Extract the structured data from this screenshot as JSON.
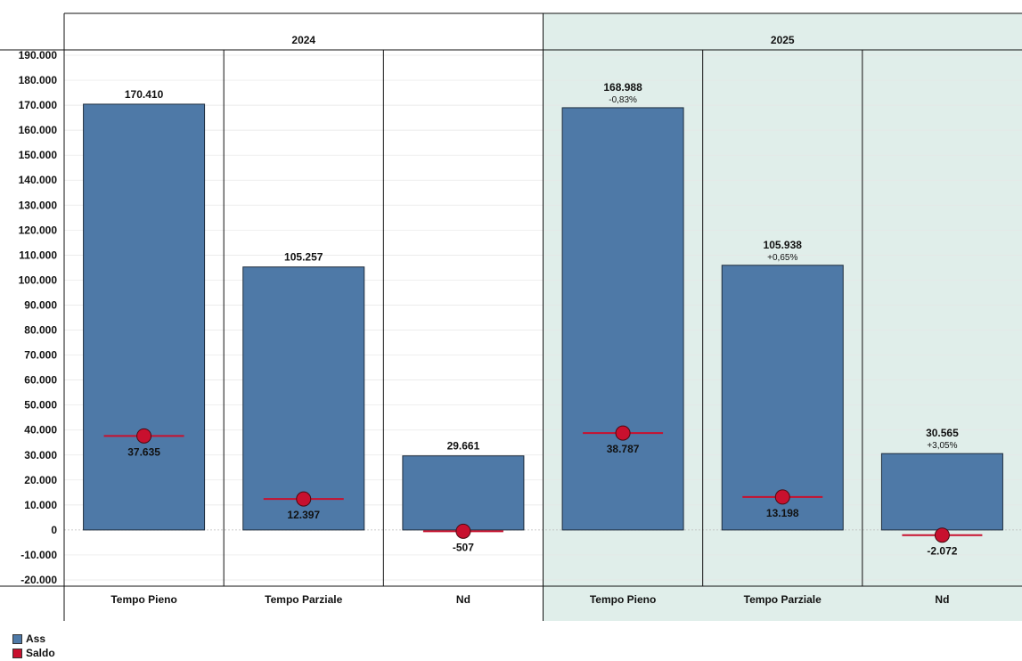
{
  "chart_data": {
    "type": "bar",
    "groups": [
      {
        "label": "2024",
        "categories": [
          "Tempo Pieno",
          "Tempo Parziale",
          "Nd"
        ]
      },
      {
        "label": "2025",
        "categories": [
          "Tempo Pieno",
          "Tempo Parziale",
          "Nd"
        ]
      }
    ],
    "series": [
      {
        "name": "Ass",
        "mark": "bar",
        "values": [
          170410,
          105257,
          29661,
          168988,
          105938,
          30565
        ],
        "labels": [
          "170.410",
          "105.257",
          "29.661",
          "168.988",
          "105.938",
          "30.565"
        ],
        "change_labels": [
          "",
          "",
          "",
          "-0,83%",
          "+0,65%",
          "+3,05%"
        ]
      },
      {
        "name": "Saldo",
        "mark": "dot",
        "values": [
          37635,
          12397,
          -507,
          38787,
          13198,
          -2072
        ],
        "labels": [
          "37.635",
          "12.397",
          "-507",
          "38.787",
          "13.198",
          "-2.072"
        ]
      }
    ],
    "ylim": [
      -20000,
      190000
    ],
    "yticks": [
      190000,
      180000,
      170000,
      160000,
      150000,
      140000,
      130000,
      120000,
      110000,
      100000,
      90000,
      80000,
      70000,
      60000,
      50000,
      40000,
      30000,
      20000,
      10000,
      0,
      -10000,
      -20000
    ],
    "ytick_labels": [
      "190.000",
      "180.000",
      "170.000",
      "160.000",
      "150.000",
      "140.000",
      "130.000",
      "120.000",
      "110.000",
      "100.000",
      "90.000",
      "80.000",
      "70.000",
      "60.000",
      "50.000",
      "40.000",
      "30.000",
      "20.000",
      "10.000",
      "0",
      "-10.000",
      "-20.000"
    ],
    "grid": true,
    "legend": "bottom-left",
    "colors": {
      "bar": "#4e79a7",
      "dot": "#c8102e",
      "shaded_group_bg": "#e0eeea"
    }
  }
}
